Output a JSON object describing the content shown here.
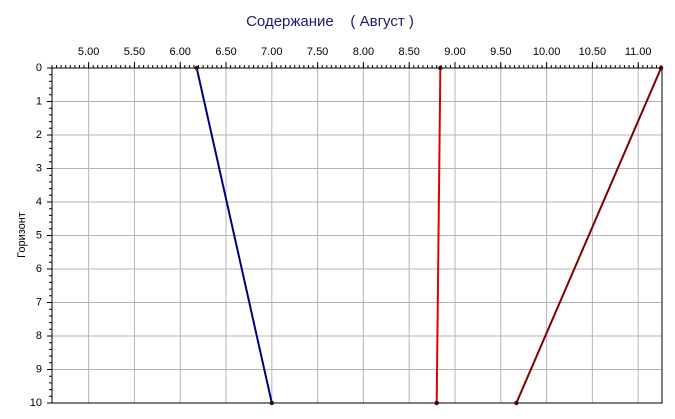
{
  "chart_data": {
    "type": "line",
    "title": "Содержание    ( Август )",
    "y_label": "Горизонт",
    "y": [
      0,
      10
    ],
    "series": [
      {
        "color": "#000080",
        "values": [
          6.18,
          7.0
        ]
      },
      {
        "color": "#e00000",
        "values": [
          8.84,
          8.8
        ]
      },
      {
        "color": "#800000",
        "values": [
          11.25,
          9.67
        ]
      }
    ],
    "xlim": [
      4.6,
      11.26
    ],
    "xticks": [
      {
        "value": 5,
        "label": "5.00"
      },
      {
        "value": 5.5,
        "label": "5.50"
      },
      {
        "value": 6,
        "label": "6.00"
      },
      {
        "value": 6.5,
        "label": "6.50"
      },
      {
        "value": 7,
        "label": "7.00"
      },
      {
        "value": 7.5,
        "label": "7.50"
      },
      {
        "value": 8,
        "label": "8.00"
      },
      {
        "value": 8.5,
        "label": "8.50"
      },
      {
        "value": 9,
        "label": "9.00"
      },
      {
        "value": 9.5,
        "label": "9.50"
      },
      {
        "value": 10,
        "label": "10.00"
      },
      {
        "value": 10.5,
        "label": "10.50"
      },
      {
        "value": 11,
        "label": "11.00"
      }
    ],
    "ylim": [
      0,
      10
    ],
    "y_inverted": true,
    "yticks": [
      0,
      1,
      2,
      3,
      4,
      5,
      6,
      7,
      8,
      9,
      10
    ],
    "x_axis_position": "top",
    "grid": true
  }
}
